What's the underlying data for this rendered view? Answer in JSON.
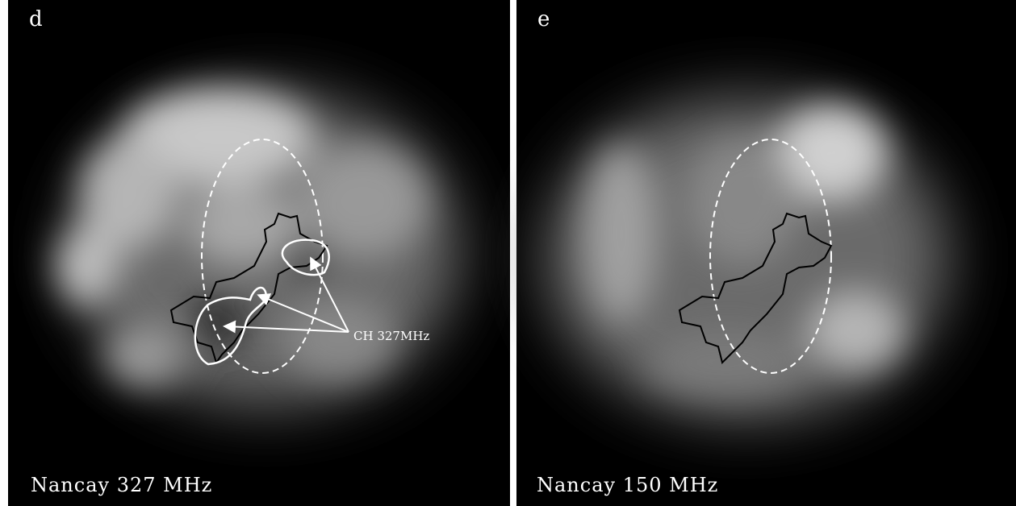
{
  "panels": [
    {
      "label": "d",
      "caption": "Nancay 327 MHz",
      "annotation": "CH 327MHz"
    },
    {
      "label": "e",
      "caption": "Nancay 150 MHz"
    }
  ]
}
